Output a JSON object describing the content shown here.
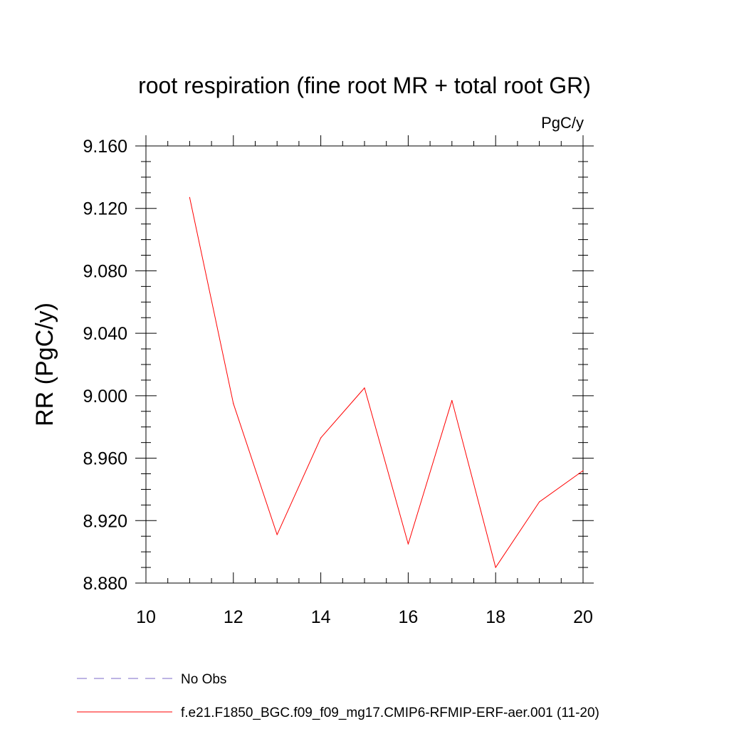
{
  "chart_data": {
    "type": "line",
    "title": "root respiration (fine root MR + total root GR)",
    "units_label": "PgC/y",
    "ylabel": "RR  (PgC/y)",
    "xlabel": "",
    "xlim": [
      10,
      20
    ],
    "ylim": [
      8.88,
      9.16
    ],
    "x_ticks": [
      10,
      12,
      14,
      16,
      18,
      20
    ],
    "x_tick_labels": [
      "10",
      "12",
      "14",
      "16",
      "18",
      "20"
    ],
    "y_ticks": [
      8.88,
      8.92,
      8.96,
      9.0,
      9.04,
      9.08,
      9.12,
      9.16
    ],
    "y_tick_labels": [
      "8.880",
      "8.920",
      "8.960",
      "9.000",
      "9.040",
      "9.080",
      "9.120",
      "9.160"
    ],
    "grid": false,
    "legend_position": "bottom-left",
    "series": [
      {
        "name": "f.e21.F1850_BGC.f09_f09_mg17.CMIP6-RFMIP-ERF-aer.001 (11-20)",
        "color": "#ff0000",
        "line_style": "solid",
        "x": [
          11,
          12,
          13,
          14,
          15,
          16,
          17,
          18,
          19,
          20
        ],
        "y": [
          9.127,
          8.995,
          8.911,
          8.973,
          9.005,
          8.905,
          8.997,
          8.89,
          8.932,
          8.952
        ]
      }
    ],
    "legend": [
      {
        "label": "No Obs",
        "color": "#7b68c8",
        "line_style": "dashed"
      },
      {
        "label": "f.e21.F1850_BGC.f09_f09_mg17.CMIP6-RFMIP-ERF-aer.001 (11-20)",
        "color": "#ff0000",
        "line_style": "solid"
      }
    ]
  }
}
